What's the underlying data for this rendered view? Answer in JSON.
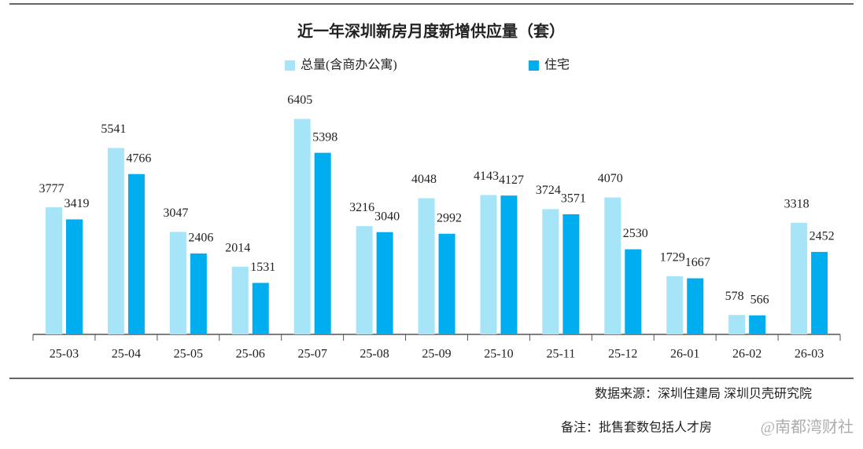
{
  "chart_data": {
    "type": "bar",
    "title": "近一年深圳新房月度新增供应量（套）",
    "categories": [
      "25-03",
      "25-04",
      "25-05",
      "25-06",
      "25-07",
      "25-08",
      "25-09",
      "25-10",
      "25-11",
      "25-12",
      "26-01",
      "26-02",
      "26-03"
    ],
    "series": [
      {
        "name": "总量(含商办公寓)",
        "color": "#a6e4f7",
        "values": [
          3777,
          5541,
          3047,
          2014,
          6405,
          3216,
          4048,
          4143,
          3724,
          4070,
          1729,
          578,
          3318
        ]
      },
      {
        "name": "住宅",
        "color": "#00aeef",
        "values": [
          3419,
          4766,
          2406,
          1531,
          5398,
          3040,
          2992,
          4127,
          3571,
          2530,
          1667,
          566,
          2452
        ]
      }
    ],
    "ylim": [
      0,
      7000
    ],
    "source": "数据来源：深圳住建局 深圳贝壳研究院",
    "note": "备注：批售套数包括人才房",
    "watermark": "@南都湾财社"
  }
}
